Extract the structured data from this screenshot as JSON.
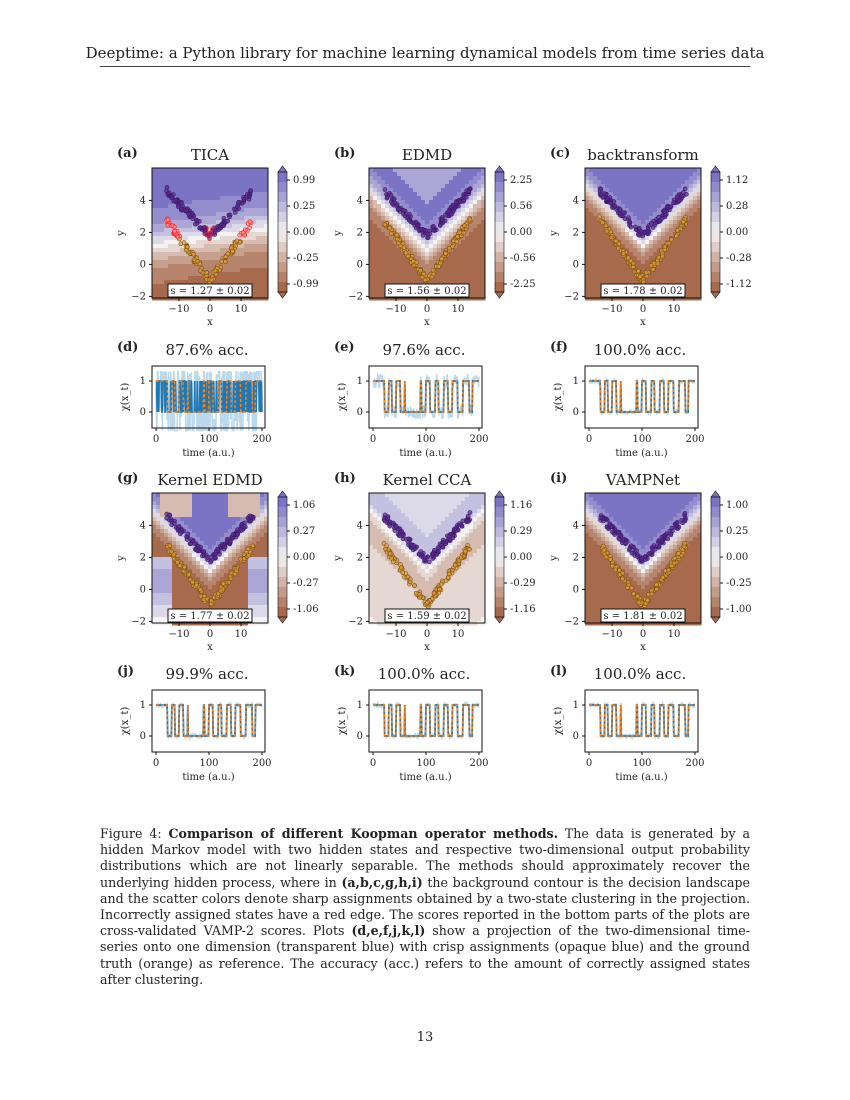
{
  "header": "Deeptime: a Python library for machine learning dynamical models from time series data",
  "colors": {
    "purple": "#7b74c4",
    "white": "#f4f2f2",
    "brown": "#a86a4c",
    "scatter_purple": "#5a2a8c",
    "scatter_orange": "#e0a040",
    "red": "#ff2020",
    "series_light": "#a9cfe8",
    "series_blue": "#1f77b4",
    "truth": "#ff7f0e"
  },
  "contour_panels": [
    {
      "label": "(a)",
      "title": "TICA",
      "score": "s = 1.27 ± 0.02",
      "colorbar_ticks": [
        "0.99",
        "0.25",
        "0.00",
        "-0.25",
        "-0.99"
      ],
      "style": "tica"
    },
    {
      "label": "(b)",
      "title": "EDMD",
      "score": "s = 1.56 ± 0.02",
      "colorbar_ticks": [
        "2.25",
        "0.56",
        "0.00",
        "-0.56",
        "-2.25"
      ],
      "style": "edmd"
    },
    {
      "label": "(c)",
      "title": "backtransform",
      "score": "s = 1.78 ± 0.02",
      "colorbar_ticks": [
        "1.12",
        "0.28",
        "0.00",
        "-0.28",
        "-1.12"
      ],
      "style": "v"
    },
    {
      "label": "(g)",
      "title": "Kernel EDMD",
      "score": "s = 1.77 ± 0.02",
      "colorbar_ticks": [
        "1.06",
        "0.27",
        "0.00",
        "-0.27",
        "-1.06"
      ],
      "style": "kedmd"
    },
    {
      "label": "(h)",
      "title": "Kernel CCA",
      "score": "s = 1.59 ± 0.02",
      "colorbar_ticks": [
        "1.16",
        "0.29",
        "0.00",
        "-0.29",
        "-1.16"
      ],
      "style": "kcca"
    },
    {
      "label": "(i)",
      "title": "VAMPNet",
      "score": "s = 1.81 ± 0.02",
      "colorbar_ticks": [
        "1.00",
        "0.25",
        "0.00",
        "-0.25",
        "-1.00"
      ],
      "style": "v"
    }
  ],
  "contour_axes": {
    "xlabel": "x",
    "ylabel": "y",
    "xticks": [
      "−10",
      "0",
      "10"
    ],
    "yticks": [
      "4",
      "2",
      "0",
      "−2"
    ]
  },
  "series_panels": [
    {
      "label": "(d)",
      "title": "87.6% acc.",
      "accuracy": 87.6
    },
    {
      "label": "(e)",
      "title": "97.6% acc.",
      "accuracy": 97.6
    },
    {
      "label": "(f)",
      "title": "100.0% acc.",
      "accuracy": 100.0
    },
    {
      "label": "(j)",
      "title": "99.9% acc.",
      "accuracy": 99.9
    },
    {
      "label": "(k)",
      "title": "100.0% acc.",
      "accuracy": 100.0
    },
    {
      "label": "(l)",
      "title": "100.0% acc.",
      "accuracy": 100.0
    }
  ],
  "series_axes": {
    "xlabel": "time (a.u.)",
    "ylabel": "χ(x_t)",
    "xticks": [
      "0",
      "100",
      "200"
    ],
    "yticks": [
      "1",
      "0"
    ]
  },
  "caption": {
    "prefix": "Figure 4: ",
    "bold_title": "Comparison of different Koopman operator methods.",
    "text1": " The data is generated by a hidden Markov model with two hidden states and respective two-dimensional output probability distributions which are not linearly separable. The methods should approximately recover the underlying hidden process, where in ",
    "bold_a": "(a,b,c,g,h,i)",
    "text2": " the background contour is the decision landscape and the scatter colors denote sharp assignments obtained by a two-state clustering in the projection. Incorrectly assigned states have a red edge. The scores reported in the bottom parts of the plots are cross-validated VAMP-2 scores. Plots ",
    "bold_d": "(d,e,f,j,k,l)",
    "text3": " show a projection of the two-dimensional time-series onto one dimension (transparent blue) with crisp assignments (opaque blue) and the ground truth (orange) as reference. The accuracy (acc.) refers to the amount of correctly assigned states after clustering."
  },
  "page_number": "13"
}
